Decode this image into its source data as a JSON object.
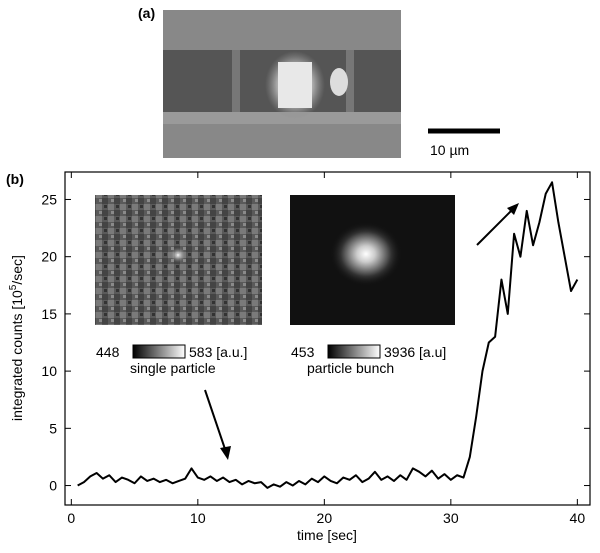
{
  "chart_data": {
    "type": "line",
    "panel_labels": [
      "(a)",
      "(b)"
    ],
    "scale_bar_label": "10 µm",
    "xlabel": "time [sec]",
    "ylabel_parts": [
      "integrated counts [10",
      "5",
      "/sec]"
    ],
    "insets": [
      {
        "colorbar_labels": [
          "448",
          "583 [a.u.]"
        ],
        "caption": "single particle"
      },
      {
        "colorbar_labels": [
          "453",
          "3936 [a.u]"
        ],
        "caption": "particle bunch"
      }
    ],
    "x": [
      0.5,
      1,
      1.5,
      2,
      2.5,
      3,
      3.5,
      4,
      4.5,
      5,
      5.5,
      6,
      6.5,
      7,
      7.5,
      8,
      8.5,
      9,
      9.5,
      10,
      10.5,
      11,
      11.5,
      12,
      12.5,
      13,
      13.5,
      14,
      14.5,
      15,
      15.5,
      16,
      16.5,
      17,
      17.5,
      18,
      18.5,
      19,
      19.5,
      20,
      20.5,
      21,
      21.5,
      22,
      22.5,
      23,
      23.5,
      24,
      24.5,
      25,
      25.5,
      26,
      26.5,
      27,
      27.5,
      28,
      28.5,
      29,
      29.5,
      30,
      30.5,
      31,
      31.5,
      32,
      32.5,
      33,
      33.5,
      34,
      34.5,
      35,
      35.5,
      36,
      36.5,
      37,
      37.5,
      38,
      38.5,
      39,
      39.5,
      40
    ],
    "series": [
      {
        "color": "#000000",
        "values": [
          0,
          0.3,
          0.8,
          1.1,
          0.6,
          0.9,
          0.3,
          0.7,
          0.5,
          0.2,
          0.8,
          0.4,
          0.6,
          0.3,
          0.5,
          0.2,
          0.4,
          0.6,
          1.5,
          0.7,
          0.5,
          0.8,
          0.4,
          0.7,
          0.3,
          0.5,
          0.1,
          0.4,
          0.2,
          0.3,
          -0.2,
          0.1,
          -0.1,
          0.3,
          0,
          0.4,
          0.1,
          0.6,
          0.3,
          0.8,
          0.4,
          0.2,
          0.7,
          0.5,
          0.9,
          0.3,
          0.6,
          1.2,
          0.5,
          0.8,
          0.4,
          0.9,
          0.5,
          1.5,
          1.2,
          0.8,
          1.3,
          0.6,
          1,
          0.5,
          0.9,
          0.7,
          2.5,
          6,
          10,
          12.5,
          13,
          18,
          15,
          22,
          20,
          24,
          21,
          23,
          25.5,
          26.5,
          23,
          20,
          17,
          18
        ]
      }
    ],
    "xlim": [
      -0.5,
      41
    ],
    "ylim": [
      -1.7,
      27.4
    ],
    "xticks": [
      0,
      10,
      20,
      30,
      40
    ],
    "yticks": [
      0,
      5,
      10,
      15,
      20,
      25
    ]
  }
}
